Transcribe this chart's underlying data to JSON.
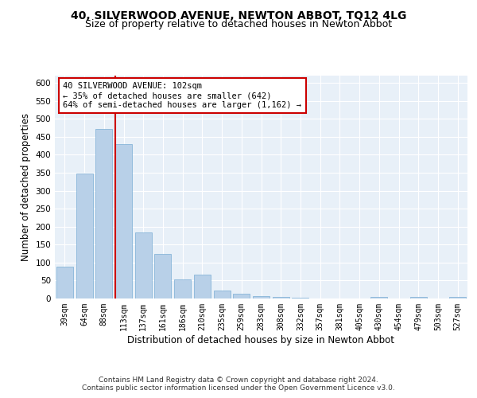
{
  "title1": "40, SILVERWOOD AVENUE, NEWTON ABBOT, TQ12 4LG",
  "title2": "Size of property relative to detached houses in Newton Abbot",
  "xlabel": "Distribution of detached houses by size in Newton Abbot",
  "ylabel": "Number of detached properties",
  "categories": [
    "39sqm",
    "64sqm",
    "88sqm",
    "113sqm",
    "137sqm",
    "161sqm",
    "186sqm",
    "210sqm",
    "235sqm",
    "259sqm",
    "283sqm",
    "308sqm",
    "332sqm",
    "357sqm",
    "381sqm",
    "405sqm",
    "430sqm",
    "454sqm",
    "479sqm",
    "503sqm",
    "527sqm"
  ],
  "values": [
    88,
    347,
    472,
    430,
    183,
    123,
    53,
    67,
    22,
    13,
    6,
    5,
    2,
    1,
    1,
    0,
    5,
    0,
    4,
    0,
    4
  ],
  "bar_color": "#b8d0e8",
  "bar_edge_color": "#7aadd4",
  "vline_color": "#cc0000",
  "annotation_text": "40 SILVERWOOD AVENUE: 102sqm\n← 35% of detached houses are smaller (642)\n64% of semi-detached houses are larger (1,162) →",
  "annotation_box_color": "#ffffff",
  "annotation_box_edge": "#cc0000",
  "footer": "Contains HM Land Registry data © Crown copyright and database right 2024.\nContains public sector information licensed under the Open Government Licence v3.0.",
  "ylim": [
    0,
    620
  ],
  "yticks": [
    0,
    50,
    100,
    150,
    200,
    250,
    300,
    350,
    400,
    450,
    500,
    550,
    600
  ],
  "bg_color": "#e8f0f8",
  "fig_bg_color": "#ffffff",
  "title1_fontsize": 10,
  "title2_fontsize": 9,
  "xlabel_fontsize": 8.5,
  "ylabel_fontsize": 8.5,
  "footer_fontsize": 6.5,
  "tick_fontsize": 7,
  "ytick_fontsize": 7.5
}
